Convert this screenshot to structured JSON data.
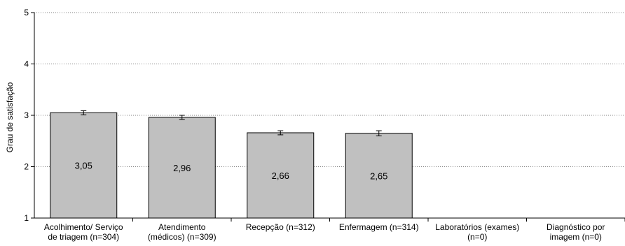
{
  "chart_data": {
    "type": "bar",
    "title": "",
    "xlabel": "",
    "ylabel": "Grau de satisfação",
    "ylim": [
      1,
      5
    ],
    "yticks": [
      "1",
      "2",
      "3",
      "4",
      "5"
    ],
    "grid": "horizontal dotted",
    "categories": [
      [
        "Acolhimento/ Serviço",
        "de triagem (n=304)"
      ],
      [
        "Atendimento",
        "(médicos) (n=309)"
      ],
      [
        "Recepção (n=312)"
      ],
      [
        "Enfermagem (n=314)"
      ],
      [
        "Laboratórios (exames)",
        "(n=0)"
      ],
      [
        "Diagnóstico por",
        "imagem (n=0)"
      ]
    ],
    "values": [
      3.05,
      2.96,
      2.66,
      2.65,
      null,
      null
    ],
    "value_labels": [
      "3,05",
      "2,96",
      "2,66",
      "2,65",
      "",
      ""
    ],
    "error": [
      0.04,
      0.04,
      0.04,
      0.05,
      null,
      null
    ],
    "colors": {
      "bar": "#c0c0c0",
      "bar_stroke": "#000000",
      "grid": "#808080"
    }
  }
}
